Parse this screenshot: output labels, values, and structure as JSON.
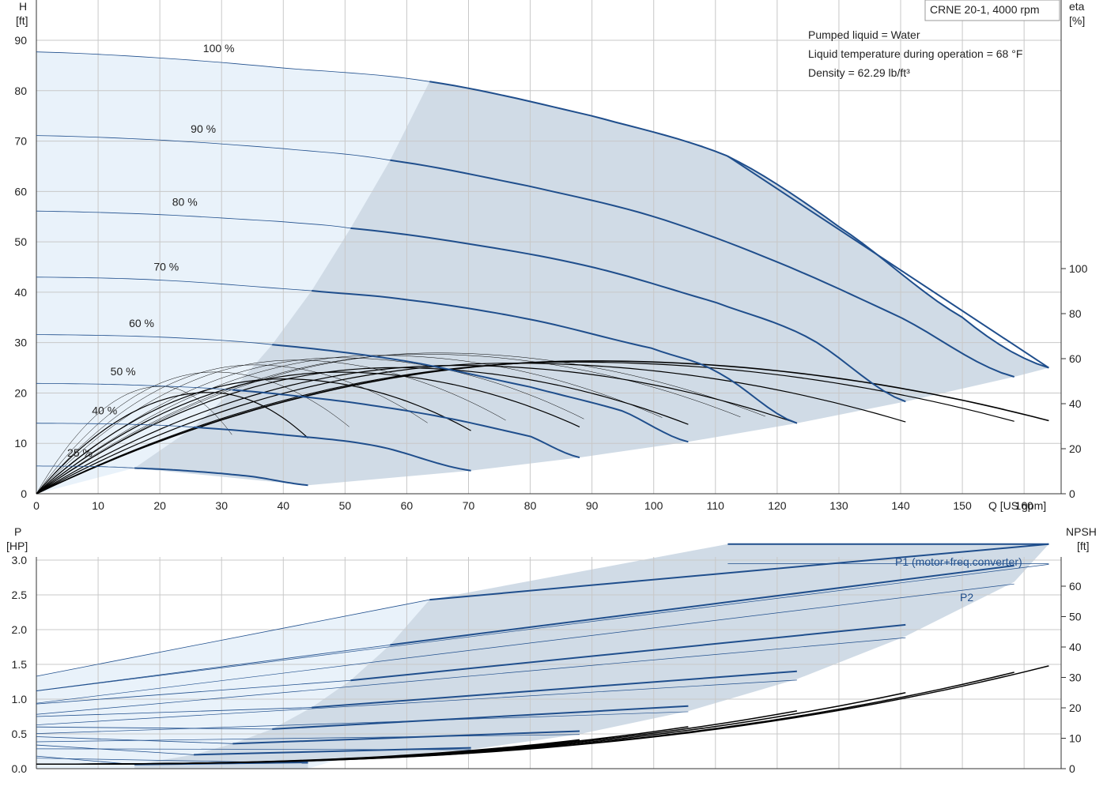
{
  "chart_data": [
    {
      "type": "line",
      "title_box": "CRNE 20-1, 4000 rpm",
      "info": [
        "Pumped liquid = Water",
        "Liquid temperature during operation = 68 °F",
        "Density = 62.29 lb/ft³"
      ],
      "axes": {
        "x": {
          "label": "Q [US gpm]",
          "range": [
            0,
            166
          ],
          "ticks": [
            0,
            10,
            20,
            30,
            40,
            50,
            60,
            70,
            80,
            90,
            100,
            110,
            120,
            130,
            140,
            150,
            160
          ]
        },
        "y_left": {
          "label_top": "H",
          "label_unit": "[ft]",
          "range": [
            0,
            98
          ],
          "ticks": [
            0,
            10,
            20,
            30,
            40,
            50,
            60,
            70,
            80,
            90
          ]
        },
        "y_right": {
          "label_top": "eta",
          "label_unit": "[%]",
          "range": [
            0,
            100
          ],
          "ticks": [
            0,
            20,
            40,
            60,
            80,
            100
          ]
        }
      },
      "grid": true,
      "colors": {
        "curve": "#1f4e8c",
        "eff": "#000000",
        "fill_dark": "#d0dbe6",
        "fill_light": "#e9f2fa"
      },
      "head_curves": [
        {
          "label": "100 %",
          "shut_off": 87.7,
          "q_start_bold": 63.7,
          "q_end": 164,
          "points": [
            [
              0,
              87.7
            ],
            [
              20,
              86.5
            ],
            [
              40,
              84.5
            ],
            [
              63.7,
              81.8
            ],
            [
              90,
              75
            ],
            [
              112,
              67
            ],
            [
              130,
              53
            ],
            [
              150,
              35
            ],
            [
              164,
              25
            ]
          ]
        },
        {
          "label": "90 %",
          "shut_off": 71.1,
          "q_start_bold": 57.3,
          "q_end": 158.4,
          "points": [
            [
              0,
              71.1
            ],
            [
              20,
              70.2
            ],
            [
              40,
              68.5
            ],
            [
              57.3,
              66.2
            ],
            [
              80,
              61
            ],
            [
              100,
              55
            ],
            [
              120,
              46
            ],
            [
              140,
              35
            ],
            [
              158.4,
              23.2
            ]
          ]
        },
        {
          "label": "80 %",
          "shut_off": 56.1,
          "q_start_bold": 50.9,
          "q_end": 140.8,
          "points": [
            [
              0,
              56.1
            ],
            [
              20,
              55.4
            ],
            [
              40,
              54
            ],
            [
              50.9,
              52.7
            ],
            [
              70,
              49.6
            ],
            [
              90,
              45
            ],
            [
              110,
              38
            ],
            [
              125,
              31
            ],
            [
              140.8,
              18.3
            ]
          ]
        },
        {
          "label": "70 %",
          "shut_off": 43.0,
          "q_start_bold": 44.6,
          "q_end": 123.2,
          "points": [
            [
              0,
              43
            ],
            [
              20,
              42.4
            ],
            [
              44.6,
              40.3
            ],
            [
              60,
              38.5
            ],
            [
              80,
              34.6
            ],
            [
              100,
              28.8
            ],
            [
              110,
              24.3
            ],
            [
              123.2,
              14
            ]
          ]
        },
        {
          "label": "60 %",
          "shut_off": 31.6,
          "q_start_bold": 38.2,
          "q_end": 105.6,
          "points": [
            [
              0,
              31.6
            ],
            [
              20,
              31.1
            ],
            [
              38.2,
              29.6
            ],
            [
              60,
              26.3
            ],
            [
              80,
              21.2
            ],
            [
              95,
              16.4
            ],
            [
              105.6,
              10.3
            ]
          ]
        },
        {
          "label": "50 %",
          "shut_off": 21.9,
          "q_start_bold": 31.8,
          "q_end": 88.0,
          "points": [
            [
              0,
              21.9
            ],
            [
              15,
              21.6
            ],
            [
              31.8,
              20.6
            ],
            [
              50,
              18.3
            ],
            [
              65,
              15.4
            ],
            [
              80,
              11.4
            ],
            [
              88,
              7.2
            ]
          ]
        },
        {
          "label": "40 %",
          "shut_off": 14.0,
          "q_start_bold": 25.5,
          "q_end": 70.4,
          "points": [
            [
              0,
              14
            ],
            [
              15,
              13.8
            ],
            [
              25.5,
              13.2
            ],
            [
              40,
              11.7
            ],
            [
              55,
              9.5
            ],
            [
              70.4,
              4.6
            ]
          ]
        },
        {
          "label": "25 %",
          "shut_off": 5.5,
          "q_start_bold": 15.9,
          "q_end": 44.0,
          "points": [
            [
              0,
              5.5
            ],
            [
              10,
              5.4
            ],
            [
              15.9,
              5.1
            ],
            [
              25,
              4.5
            ],
            [
              35,
              3.4
            ],
            [
              44,
              1.7
            ]
          ]
        }
      ],
      "efficiency_curves_eta_pct": [
        {
          "q_end": 164,
          "peak_q": 90,
          "peak_eta": 59
        },
        {
          "q_end": 158.4,
          "peak_q": 87,
          "peak_eta": 58.5
        },
        {
          "q_end": 140.8,
          "peak_q": 77,
          "peak_eta": 58
        },
        {
          "q_end": 123.2,
          "peak_q": 68,
          "peak_eta": 57
        },
        {
          "q_end": 105.6,
          "peak_q": 58,
          "peak_eta": 56
        },
        {
          "q_end": 88.0,
          "peak_q": 49,
          "peak_eta": 54
        },
        {
          "q_end": 70.4,
          "peak_q": 40,
          "peak_eta": 51
        },
        {
          "q_end": 44.0,
          "peak_q": 28,
          "peak_eta": 45
        }
      ]
    },
    {
      "type": "line",
      "axes": {
        "x": {
          "range": [
            0,
            166
          ],
          "ticks": [
            0,
            10,
            20,
            30,
            40,
            50,
            60,
            70,
            80,
            90,
            100,
            110,
            120,
            130,
            140,
            150,
            160
          ]
        },
        "y_left": {
          "label_top": "P",
          "label_unit": "[HP]",
          "range": [
            0,
            3.5
          ],
          "ticks": [
            "0.0",
            "0.5",
            "1.0",
            "1.5",
            "2.0",
            "2.5",
            "3.0"
          ]
        },
        "y_right": {
          "label_top": "NPSH",
          "label_unit": "[ft]",
          "range": [
            0,
            70
          ],
          "ticks": [
            0,
            10,
            20,
            30,
            40,
            50,
            60
          ]
        }
      },
      "grid": true,
      "series_labels": {
        "p1": "P1 (motor+freq.converter)",
        "p2": "P2"
      },
      "p1_100pct": [
        [
          0,
          1.33
        ],
        [
          63.7,
          2.43
        ],
        [
          112,
          3.23
        ],
        [
          164,
          3.23
        ]
      ],
      "p2_100pct": [
        [
          0,
          1.1
        ],
        [
          63.7,
          2.1
        ],
        [
          112,
          2.95
        ],
        [
          164,
          2.95
        ]
      ],
      "power_curves_p1": [
        {
          "q0": 0,
          "p0": 1.33,
          "q_bold": 63.7,
          "p_bold": 2.43,
          "q_end": 164,
          "p_end": 3.23
        },
        {
          "q0": 0,
          "p0": 1.12,
          "q_bold": 57.3,
          "p_bold": 1.78,
          "q_end": 158.4,
          "p_end": 2.92
        },
        {
          "q0": 0,
          "p0": 0.93,
          "q_bold": 50.9,
          "p_bold": 1.27,
          "q_end": 140.8,
          "p_end": 2.07
        },
        {
          "q0": 0,
          "p0": 0.75,
          "q_bold": 44.6,
          "p_bold": 0.88,
          "q_end": 123.2,
          "p_end": 1.4
        },
        {
          "q0": 0,
          "p0": 0.6,
          "q_bold": 38.2,
          "p_bold": 0.57,
          "q_end": 105.6,
          "p_end": 0.9
        },
        {
          "q0": 0,
          "p0": 0.46,
          "q_bold": 31.8,
          "p_bold": 0.36,
          "q_end": 88.0,
          "p_end": 0.54
        },
        {
          "q0": 0,
          "p0": 0.34,
          "q_bold": 25.5,
          "p_bold": 0.2,
          "q_end": 70.4,
          "p_end": 0.3
        },
        {
          "q0": 0,
          "p0": 0.18,
          "q_bold": 15.9,
          "p_bold": 0.06,
          "q_end": 44.0,
          "p_end": 0.09
        }
      ],
      "npsh_curves_ft": [
        {
          "q_end": 164,
          "npsh_end": 33.8
        },
        {
          "q_end": 158.4,
          "npsh_end": 31.7
        },
        {
          "q_end": 140.8,
          "npsh_end": 25.0
        },
        {
          "q_end": 123.2,
          "npsh_end": 19.0
        },
        {
          "q_end": 105.6,
          "npsh_end": 13.8
        },
        {
          "q_end": 88.0,
          "npsh_end": 9.5
        }
      ]
    }
  ]
}
